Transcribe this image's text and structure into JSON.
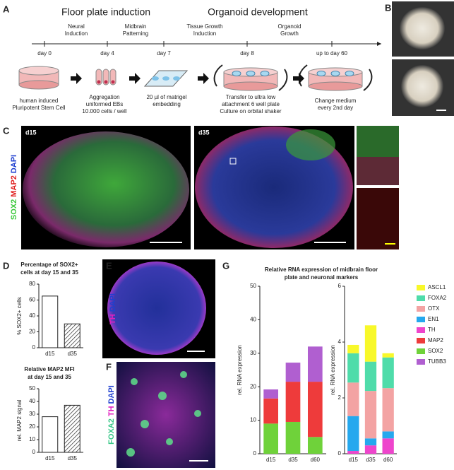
{
  "panel_labels": [
    "A",
    "B",
    "C",
    "D",
    "E",
    "F",
    "G"
  ],
  "panel_a": {
    "phases": [
      "Floor plate induction",
      "Organoid development"
    ],
    "steps": [
      [
        "Neural",
        "Induction"
      ],
      [
        "Midbrain",
        "Patterning"
      ],
      [
        "Tissue Growth",
        "Induction"
      ],
      [
        "Organoid",
        "Growth"
      ]
    ],
    "days": [
      "day 0",
      "day 4",
      "day 7",
      "day 8",
      "up to day 60"
    ],
    "captions": [
      [
        "human induced",
        "Pluripotent Stem Cell"
      ],
      [
        "Aggregation",
        "uniformed EBs",
        "10.000 cells / well"
      ],
      [
        "20 µl of matrigel",
        "embedding"
      ],
      [
        "Transfer to ultra low",
        "attachment 6 well plate",
        "Culture on orbital shaker"
      ],
      [
        "Change medium",
        "every 2nd day"
      ]
    ]
  },
  "panel_c": {
    "stain": [
      "SOX2",
      "MAP2",
      "DAPI"
    ],
    "timepoints": [
      "d15",
      "d35"
    ]
  },
  "panel_e": {
    "stain": [
      "TH",
      "DAPI"
    ]
  },
  "panel_f": {
    "stain": [
      "FOXA2",
      "TH",
      "DAPI"
    ]
  },
  "panel_g": {
    "title": [
      "Relative RNA expression of midbrain floor",
      "plate and neuronal markers"
    ]
  },
  "chart_data": [
    {
      "type": "bar",
      "title": [
        "Percentage of SOX2+",
        "cells at day 15 and 35"
      ],
      "ylabel": "% SOX2+ cells",
      "categories": [
        "d15",
        "d35"
      ],
      "values": [
        65,
        30
      ],
      "ylim": [
        0,
        80
      ],
      "yticks": [
        0,
        20,
        40,
        60,
        80
      ]
    },
    {
      "type": "bar",
      "title": [
        "Relative MAP2 MFI",
        "at day 15 and 35"
      ],
      "ylabel": "rel. MAP2 signal",
      "categories": [
        "d15",
        "d35"
      ],
      "values": [
        28,
        37
      ],
      "ylim": [
        0,
        50
      ],
      "yticks": [
        0,
        10,
        20,
        30,
        40,
        50
      ]
    },
    {
      "type": "stacked_bar",
      "ylabel": "rel. RNA expression",
      "categories": [
        "d15",
        "d35",
        "d60"
      ],
      "ylim": [
        0,
        50
      ],
      "yticks": [
        0,
        10,
        20,
        30,
        40,
        50
      ],
      "series": [
        {
          "name": "MAP2",
          "color": "#ee3b3b",
          "values": [
            7.5,
            12,
            16.5
          ]
        },
        {
          "name": "SOX2",
          "color": "#6fd23a",
          "values": [
            9,
            9.5,
            5
          ]
        },
        {
          "name": "TUBB3",
          "color": "#b05fd0",
          "values": [
            2.7,
            5.7,
            10.5
          ]
        }
      ]
    },
    {
      "type": "stacked_bar",
      "ylabel": "rel. RNA expression",
      "categories": [
        "d15",
        "d35",
        "d60"
      ],
      "ylim": [
        0,
        6
      ],
      "yticks": [
        0,
        2,
        4,
        6
      ],
      "series": [
        {
          "name": "ASCL1",
          "color": "#f8f82a",
          "values": [
            0.3,
            1.3,
            0.15
          ]
        },
        {
          "name": "FOXA2",
          "color": "#4fdcaa",
          "values": [
            1.05,
            1.05,
            1.1
          ]
        },
        {
          "name": "OTX",
          "color": "#f3a3a3",
          "values": [
            1.2,
            1.7,
            1.55
          ]
        },
        {
          "name": "EN1",
          "color": "#25a8ee",
          "values": [
            1.25,
            0.25,
            0.25
          ]
        },
        {
          "name": "TH",
          "color": "#ee45cc",
          "values": [
            0.1,
            0.3,
            0.55
          ]
        }
      ]
    }
  ]
}
